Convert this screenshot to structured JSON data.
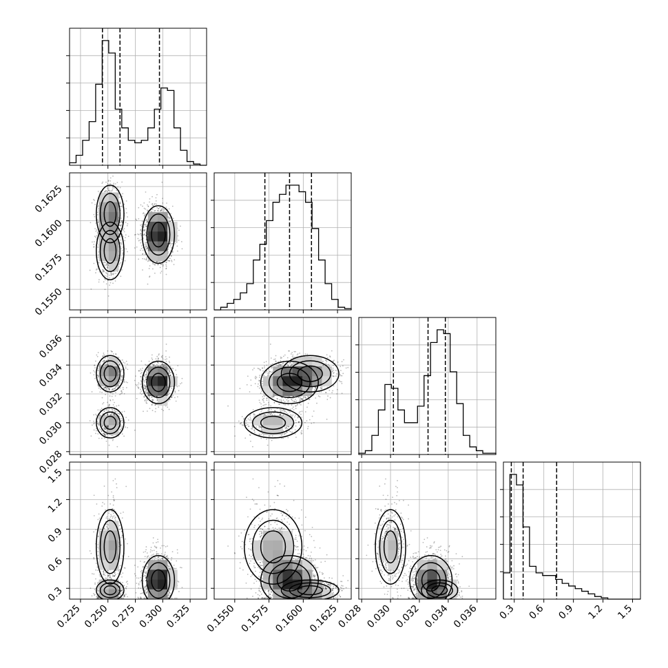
{
  "chart_data": {
    "type": "corner",
    "grid": true,
    "parameters": [
      {
        "key": "p1",
        "range": [
          0.215,
          0.34
        ],
        "ticks": [
          0.225,
          0.25,
          0.275,
          0.3,
          0.325
        ],
        "tick_labels": [
          "0.225",
          "0.250",
          "0.275",
          "0.300",
          "0.325"
        ],
        "quantiles": [
          0.245,
          0.261,
          0.297
        ],
        "hist_edges": [
          0.215,
          0.34
        ],
        "hist_values": [
          2,
          8,
          20,
          35,
          65,
          100,
          90,
          45,
          30,
          20,
          18,
          20,
          30,
          45,
          62,
          60,
          30,
          12,
          3,
          1,
          0
        ]
      },
      {
        "key": "p2",
        "range": [
          0.1535,
          0.1635
        ],
        "ticks": [
          0.155,
          0.1575,
          0.16,
          0.1625
        ],
        "tick_labels": [
          "0.1550",
          "0.1575",
          "0.1600",
          "0.1625"
        ],
        "quantiles": [
          0.1572,
          0.159,
          0.1606
        ],
        "hist_values": [
          0,
          2,
          5,
          8,
          13,
          20,
          38,
          50,
          68,
          82,
          88,
          95,
          95,
          90,
          82,
          62,
          38,
          20,
          8,
          2,
          1
        ]
      },
      {
        "key": "p3",
        "range": [
          0.0278,
          0.0373
        ],
        "ticks": [
          0.028,
          0.03,
          0.032,
          0.034,
          0.036
        ],
        "tick_labels": [
          "0.028",
          "0.030",
          "0.032",
          "0.034",
          "0.036"
        ],
        "quantiles": [
          0.0302,
          0.0326,
          0.0338
        ],
        "hist_values": [
          1,
          3,
          15,
          35,
          55,
          52,
          35,
          25,
          25,
          38,
          62,
          88,
          98,
          95,
          65,
          40,
          15,
          6,
          3,
          1,
          1
        ]
      },
      {
        "key": "p4",
        "range": [
          0.19,
          1.58
        ],
        "ticks": [
          0.3,
          0.6,
          0.9,
          1.2,
          1.5
        ],
        "tick_labels": [
          "0.3",
          "0.6",
          "0.9",
          "1.2",
          "1.5"
        ],
        "quantiles": [
          0.27,
          0.39,
          0.73
        ],
        "hist_values": [
          20,
          95,
          87,
          55,
          25,
          20,
          18,
          18,
          15,
          12,
          10,
          8,
          6,
          4,
          2,
          1,
          0,
          0,
          0,
          0,
          0
        ]
      }
    ],
    "modes": [
      {
        "weight": 0.3,
        "mean": [
          0.252,
          0.1605,
          0.0334,
          0.28
        ],
        "sd": [
          0.006,
          0.001,
          0.0006,
          0.05
        ]
      },
      {
        "weight": 0.2,
        "mean": [
          0.252,
          0.1578,
          0.03,
          0.72
        ],
        "sd": [
          0.006,
          0.001,
          0.0005,
          0.18
        ]
      },
      {
        "weight": 0.5,
        "mean": [
          0.296,
          0.159,
          0.0328,
          0.38
        ],
        "sd": [
          0.007,
          0.001,
          0.0007,
          0.12
        ]
      }
    ]
  }
}
